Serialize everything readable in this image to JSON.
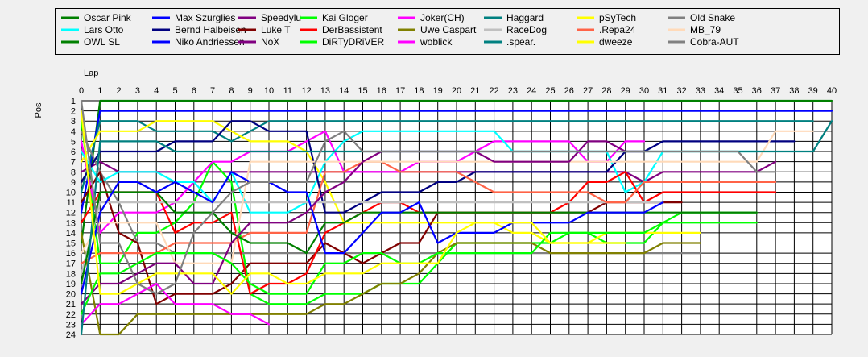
{
  "chart_data": {
    "type": "line",
    "xlabel": "Lap",
    "ylabel": "Pos",
    "xlim": [
      0,
      40
    ],
    "ylim": [
      1,
      24
    ],
    "y_inverted": true,
    "grid": true,
    "legend_placement": "top",
    "x_ticks": [
      "0",
      "1",
      "2",
      "3",
      "4",
      "5",
      "6",
      "7",
      "8",
      "9",
      "10",
      "11",
      "12",
      "13",
      "14",
      "15",
      "16",
      "17",
      "18",
      "19",
      "20",
      "21",
      "22",
      "23",
      "24",
      "25",
      "26",
      "27",
      "28",
      "29",
      "30",
      "31",
      "32",
      "33",
      "34",
      "35",
      "36",
      "37",
      "38",
      "39",
      "40"
    ],
    "y_ticks": [
      "1",
      "2",
      "3",
      "4",
      "5",
      "6",
      "7",
      "8",
      "9",
      "10",
      "11",
      "12",
      "13",
      "14",
      "15",
      "16",
      "17",
      "18",
      "19",
      "20",
      "21",
      "22",
      "23",
      "24"
    ],
    "series": [
      {
        "name": "Oscar Pink",
        "color": "#008000",
        "values": [
          15,
          1,
          1,
          1,
          1,
          1,
          1,
          1,
          1,
          1,
          1,
          1,
          1,
          1,
          1,
          1,
          1,
          1,
          1,
          1,
          1,
          1,
          1,
          1,
          1,
          1,
          1,
          1,
          1,
          1,
          1,
          1,
          1,
          1,
          1,
          1,
          1,
          1,
          1,
          1,
          1
        ]
      },
      {
        "name": "Max Szurglies",
        "color": "#0000ff",
        "values": [
          12,
          2,
          2,
          2,
          2,
          2,
          2,
          2,
          2,
          2,
          2,
          2,
          2,
          2,
          2,
          2,
          2,
          2,
          2,
          2,
          2,
          2,
          2,
          2,
          2,
          2,
          2,
          2,
          2,
          2,
          2,
          2,
          2,
          2,
          2,
          2,
          2,
          2,
          2,
          2,
          2
        ]
      },
      {
        "name": "Speedylu",
        "color": "#800080",
        "values": [
          8,
          7,
          8,
          8,
          8,
          8,
          8,
          8,
          8,
          8,
          8,
          8,
          8,
          8,
          8,
          8,
          8,
          8,
          8,
          8,
          8,
          8,
          8,
          8,
          8,
          8,
          8,
          8,
          8,
          8,
          9,
          8,
          8,
          8,
          8,
          8,
          8,
          7
        ]
      },
      {
        "name": "Kai Gloger",
        "color": "#00ff00",
        "values": [
          3,
          17,
          17,
          14,
          14,
          13,
          11,
          7,
          9,
          20,
          21,
          21,
          21,
          20,
          20,
          20,
          19,
          19,
          19,
          17,
          15,
          15,
          15,
          15,
          15,
          15,
          14,
          14,
          15,
          15,
          15,
          13,
          12,
          12,
          12,
          12,
          12
        ]
      },
      {
        "name": "Joker(CH)",
        "color": "#ff00ff",
        "values": [
          5,
          14,
          12,
          12,
          12,
          11,
          9,
          7,
          7,
          6,
          6,
          6,
          5,
          4,
          8,
          8,
          8,
          8,
          7,
          7,
          7,
          6,
          5,
          5,
          5,
          5,
          5,
          7,
          7,
          5,
          5
        ]
      },
      {
        "name": "Haggard",
        "color": "#008080",
        "values": [
          10,
          3,
          3,
          3,
          4,
          4,
          4,
          4,
          5,
          4,
          3,
          3,
          3,
          3,
          3,
          3,
          3,
          3,
          3,
          3,
          3,
          3,
          3,
          3,
          3,
          3,
          3,
          3,
          3,
          3,
          3,
          3,
          3,
          3,
          3,
          3,
          3,
          3,
          3,
          3
        ]
      },
      {
        "name": "pSyTech",
        "color": "#ffff00",
        "values": [
          7,
          4,
          4,
          4,
          3,
          3,
          3,
          3,
          4,
          5,
          5,
          5,
          6,
          9,
          13,
          13,
          13,
          13,
          13,
          13,
          13,
          13,
          13,
          14,
          14,
          15,
          15,
          15,
          14,
          14,
          14,
          14,
          14,
          14
        ]
      },
      {
        "name": "Old Snake",
        "color": "#808080",
        "values": [
          4,
          8,
          11,
          15,
          15,
          16,
          16,
          16,
          16,
          16,
          16,
          16,
          16,
          16,
          16,
          16,
          16,
          16,
          16,
          16,
          16,
          16,
          16,
          16,
          16,
          16,
          16,
          16,
          16,
          16,
          16,
          16,
          16,
          16
        ]
      },
      {
        "name": "Lars Otto",
        "color": "#00ffff",
        "values": [
          6,
          9,
          8,
          8,
          8,
          9,
          9,
          11,
          8,
          12,
          12,
          12,
          11,
          7,
          5,
          4,
          4,
          4,
          4,
          4,
          4,
          4,
          4,
          6,
          6,
          6,
          6,
          6,
          6,
          10,
          9,
          6,
          6,
          6,
          6,
          6,
          6
        ]
      },
      {
        "name": "Bernd Halbeisen",
        "color": "#000080",
        "values": [
          9,
          6,
          6,
          6,
          6,
          5,
          5,
          5,
          3,
          3,
          4,
          4,
          4,
          12,
          12,
          11,
          10,
          10,
          10,
          9,
          9,
          8,
          8,
          8,
          8,
          8,
          8,
          8,
          8,
          6,
          6,
          5,
          5,
          5,
          5,
          5,
          5,
          5,
          5
        ]
      },
      {
        "name": "Luke T",
        "color": "#800000",
        "values": [
          11,
          8,
          14,
          15,
          21,
          20,
          20,
          20,
          19,
          17,
          17,
          17,
          17,
          15,
          16,
          17,
          16,
          15,
          15,
          12,
          12,
          12,
          12,
          12,
          12,
          12,
          12,
          12,
          11,
          11,
          11,
          11,
          11
        ]
      },
      {
        "name": "DerBassistent",
        "color": "#ff0000",
        "values": [
          13,
          10,
          10,
          10,
          10,
          14,
          13,
          13,
          12,
          20,
          19,
          19,
          18,
          14,
          13,
          12,
          11,
          11,
          12,
          12,
          12,
          12,
          12,
          12,
          12,
          12,
          11,
          9,
          9,
          8,
          11,
          10,
          10,
          10,
          10,
          10,
          10,
          10
        ]
      },
      {
        "name": "Uwe Caspart",
        "color": "#808000",
        "values": [
          14,
          24,
          24,
          22,
          22,
          22,
          22,
          22,
          22,
          22,
          22,
          22,
          22,
          21,
          21,
          20,
          19,
          19,
          18,
          16,
          15,
          15,
          15,
          15,
          15,
          16,
          16,
          16,
          16,
          16,
          16,
          15,
          15,
          15
        ]
      },
      {
        "name": "RaceDog",
        "color": "#c0c0c0",
        "values": [
          18,
          11,
          11,
          11,
          11,
          11,
          11,
          11,
          11,
          11,
          11,
          11,
          11,
          11,
          11,
          11,
          11,
          11,
          11,
          11,
          11,
          11,
          11,
          11,
          11,
          11,
          11,
          11,
          11,
          11,
          11,
          11
        ]
      },
      {
        "name": ".Repa24",
        "color": "#ff6347",
        "values": [
          17,
          16,
          16,
          16,
          16,
          15,
          15,
          15,
          15,
          14,
          14,
          14,
          14,
          8,
          8,
          7,
          7,
          8,
          8,
          8,
          8,
          9,
          10,
          10,
          10,
          10,
          10,
          10,
          11,
          11,
          9,
          9,
          9,
          9,
          9,
          9,
          9,
          9
        ]
      },
      {
        "name": "MB_79",
        "color": "#ffdab9",
        "values": [
          16,
          13,
          13,
          13,
          13,
          17,
          17,
          17,
          17,
          7,
          7,
          7,
          7,
          7,
          7,
          7,
          7,
          7,
          7,
          7,
          7,
          7,
          7,
          7,
          7,
          7,
          7,
          7,
          7,
          7,
          7,
          7,
          7,
          7,
          7,
          7,
          7,
          4,
          4,
          4
        ]
      },
      {
        "name": "OWL SL",
        "color": "#008000",
        "values": [
          19,
          10,
          10,
          10,
          10,
          12,
          12,
          12,
          14,
          15,
          15,
          15,
          16,
          13,
          13,
          12,
          12,
          12,
          12,
          12,
          12,
          12,
          12,
          12,
          12,
          12,
          12,
          12,
          12,
          12,
          12,
          12,
          12,
          12,
          12,
          12,
          12
        ]
      },
      {
        "name": "Niko Andriessen",
        "color": "#0000ff",
        "values": [
          20,
          12,
          9,
          9,
          10,
          9,
          10,
          11,
          8,
          9,
          9,
          10,
          10,
          16,
          16,
          14,
          12,
          12,
          11,
          15,
          14,
          14,
          14,
          13,
          13,
          13,
          13,
          12,
          12,
          12,
          12,
          11
        ]
      },
      {
        "name": "NoX",
        "color": "#800080",
        "values": [
          21,
          19,
          19,
          18,
          17,
          17,
          19,
          19,
          15,
          13,
          13,
          13,
          12,
          10,
          9,
          7,
          6,
          6,
          6,
          6,
          6,
          6,
          7,
          7,
          7,
          7,
          7,
          5,
          5,
          6,
          6
        ]
      },
      {
        "name": "DiRTyDRiVER",
        "color": "#00ff00",
        "values": [
          22,
          18,
          18,
          17,
          16,
          16,
          16,
          16,
          17,
          19,
          20,
          20,
          20,
          17,
          17,
          16,
          16,
          17,
          17,
          16,
          16,
          16,
          16,
          16,
          16,
          14,
          14,
          14,
          14,
          14,
          14,
          13,
          13,
          13,
          13,
          13,
          13
        ]
      },
      {
        "name": "woblick",
        "color": "#ff00ff",
        "values": [
          23,
          21,
          21,
          20,
          19,
          21,
          21,
          21,
          22,
          22,
          23
        ]
      },
      {
        "name": ".spear.",
        "color": "#008080",
        "values": [
          24,
          5,
          5,
          5,
          5,
          6,
          6,
          6,
          6,
          6,
          6,
          6,
          6,
          6,
          6,
          6,
          6,
          6,
          6,
          6,
          6,
          6,
          6,
          6,
          6,
          6,
          6,
          6,
          6,
          6,
          6,
          6,
          6,
          6,
          6,
          6,
          6,
          6,
          6,
          6,
          3
        ]
      },
      {
        "name": "dweeze",
        "color": "#ffff00",
        "values": [
          2,
          20,
          20,
          19,
          18,
          18,
          18,
          18,
          20,
          18,
          18,
          19,
          19,
          18,
          18,
          18,
          17,
          17,
          17,
          17,
          14,
          13,
          13,
          13,
          13,
          15,
          15,
          15,
          15,
          15
        ]
      },
      {
        "name": "Cobra-AUT",
        "color": "#808080",
        "values": [
          1,
          15,
          15,
          19,
          20,
          19,
          14,
          12,
          10,
          9,
          9,
          9,
          9,
          5,
          4,
          6,
          6,
          6,
          6,
          6,
          6,
          6,
          6,
          6,
          6,
          6,
          6,
          6,
          6,
          6,
          6,
          6,
          6,
          6,
          6,
          6,
          8,
          8
        ]
      }
    ]
  }
}
